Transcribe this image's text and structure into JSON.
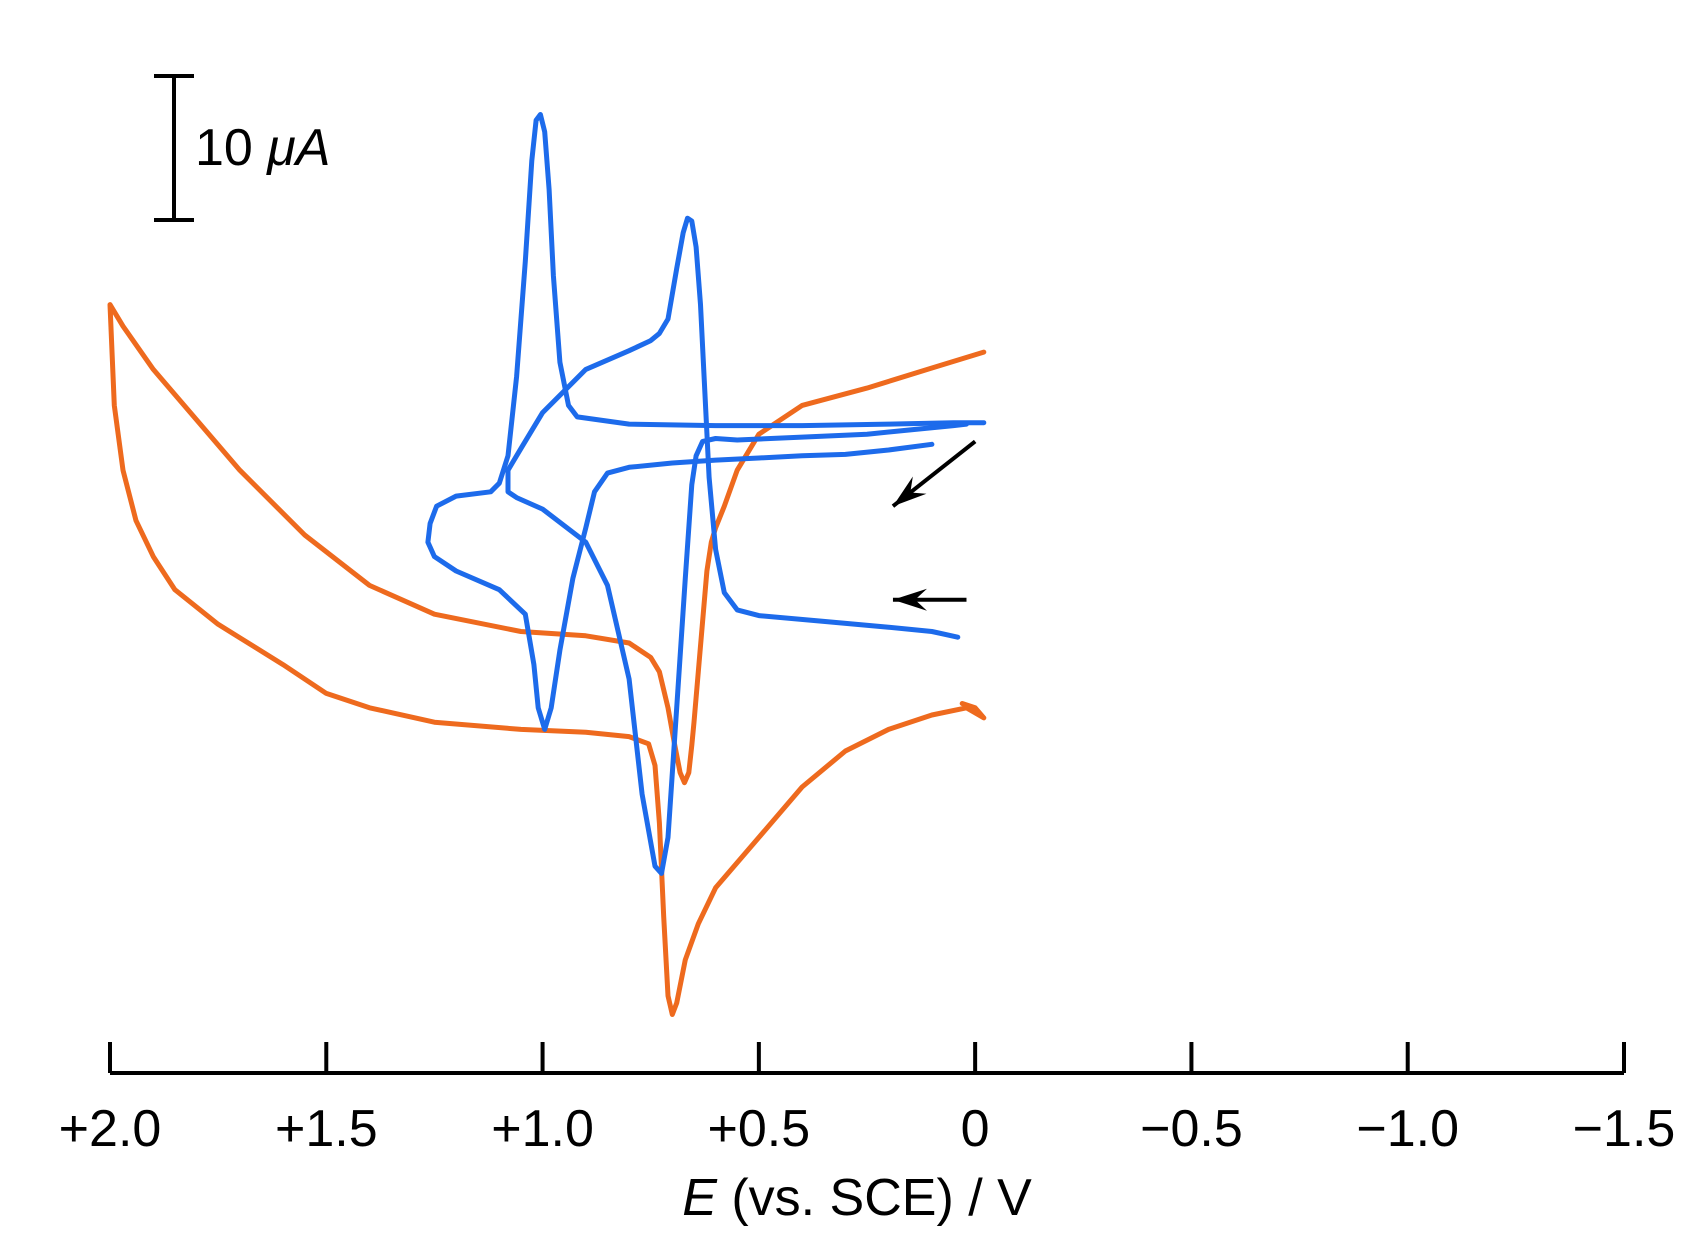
{
  "chart_data": {
    "type": "line",
    "title": "",
    "xlabel_italic": "E",
    "xlabel_rest": " (vs. SCE) / V",
    "ylabel": "",
    "xlim": [
      2.0,
      -1.5
    ],
    "x_ticks": [
      2.0,
      1.5,
      1.0,
      0.5,
      0.0,
      -0.5,
      -1.0,
      -1.5
    ],
    "x_tick_labels": [
      "+2.0",
      "+1.5",
      "+1.0",
      "+0.5",
      "0",
      "−0.5",
      "−1.0",
      "−1.5"
    ],
    "ylim_uA": [
      -50,
      35
    ],
    "scale_bar": {
      "value_uA": 10,
      "label_num": "10 ",
      "label_unit": "μA"
    },
    "grid": false,
    "legend": "none",
    "series": [
      {
        "name": "orange",
        "color": "#EE6A1E",
        "points": [
          [
            -0.02,
            12.7
          ],
          [
            0.1,
            11.6
          ],
          [
            0.25,
            10.2
          ],
          [
            0.4,
            9.0
          ],
          [
            0.5,
            7.0
          ],
          [
            0.55,
            4.5
          ],
          [
            0.58,
            2.0
          ],
          [
            0.6,
            0.5
          ],
          [
            0.61,
            -0.5
          ],
          [
            0.62,
            -2.5
          ],
          [
            0.63,
            -6.0
          ],
          [
            0.64,
            -9.5
          ],
          [
            0.65,
            -13.0
          ],
          [
            0.655,
            -14.6
          ],
          [
            0.662,
            -16.5
          ],
          [
            0.672,
            -17.2
          ],
          [
            0.682,
            -16.5
          ],
          [
            0.695,
            -14.5
          ],
          [
            0.71,
            -12.0
          ],
          [
            0.73,
            -9.5
          ],
          [
            0.75,
            -8.5
          ],
          [
            0.8,
            -7.5
          ],
          [
            0.9,
            -7.0
          ],
          [
            1.05,
            -6.7
          ],
          [
            1.25,
            -5.5
          ],
          [
            1.4,
            -3.5
          ],
          [
            1.55,
            0.0
          ],
          [
            1.7,
            4.5
          ],
          [
            1.8,
            8.0
          ],
          [
            1.9,
            11.5
          ],
          [
            1.97,
            14.5
          ],
          [
            2.0,
            16.0
          ],
          [
            1.99,
            9.0
          ],
          [
            1.97,
            4.5
          ],
          [
            1.94,
            1.0
          ],
          [
            1.9,
            -1.5
          ],
          [
            1.85,
            -3.8
          ],
          [
            1.75,
            -6.2
          ],
          [
            1.6,
            -9.0
          ],
          [
            1.5,
            -11.0
          ],
          [
            1.4,
            -12.0
          ],
          [
            1.25,
            -13.0
          ],
          [
            1.05,
            -13.5
          ],
          [
            0.9,
            -13.7
          ],
          [
            0.8,
            -14.0
          ],
          [
            0.755,
            -14.5
          ],
          [
            0.74,
            -16.0
          ],
          [
            0.73,
            -20.0
          ],
          [
            0.72,
            -26.5
          ],
          [
            0.71,
            -32.0
          ],
          [
            0.7,
            -33.3
          ],
          [
            0.69,
            -32.5
          ],
          [
            0.67,
            -29.5
          ],
          [
            0.64,
            -27.0
          ],
          [
            0.6,
            -24.5
          ],
          [
            0.5,
            -21.0
          ],
          [
            0.4,
            -17.5
          ],
          [
            0.3,
            -15.0
          ],
          [
            0.2,
            -13.5
          ],
          [
            0.1,
            -12.5
          ],
          [
            0.02,
            -12.0
          ],
          [
            -0.02,
            -12.7
          ],
          [
            0.0,
            -12.0
          ],
          [
            0.03,
            -11.7
          ]
        ]
      },
      {
        "name": "blue",
        "color": "#1D6BEB",
        "points": [
          [
            0.04,
            -7.1
          ],
          [
            0.1,
            -6.7
          ],
          [
            0.2,
            -6.4
          ],
          [
            0.35,
            -6.0
          ],
          [
            0.5,
            -5.6
          ],
          [
            0.55,
            -5.2
          ],
          [
            0.58,
            -4.0
          ],
          [
            0.6,
            -1.0
          ],
          [
            0.615,
            4.0
          ],
          [
            0.625,
            10.0
          ],
          [
            0.635,
            16.0
          ],
          [
            0.645,
            20.0
          ],
          [
            0.655,
            21.8
          ],
          [
            0.665,
            22.0
          ],
          [
            0.675,
            21.0
          ],
          [
            0.69,
            18.5
          ],
          [
            0.71,
            15.0
          ],
          [
            0.73,
            14.0
          ],
          [
            0.75,
            13.5
          ],
          [
            0.8,
            12.8
          ],
          [
            0.9,
            11.5
          ],
          [
            1.0,
            8.5
          ],
          [
            1.05,
            6.0
          ],
          [
            1.07,
            5.0
          ],
          [
            1.08,
            4.5
          ],
          [
            1.08,
            3.0
          ],
          [
            1.06,
            2.6
          ],
          [
            1.0,
            1.8
          ],
          [
            0.9,
            -0.5
          ],
          [
            0.85,
            -3.5
          ],
          [
            0.8,
            -10.0
          ],
          [
            0.77,
            -18.0
          ],
          [
            0.74,
            -23.0
          ],
          [
            0.725,
            -23.5
          ],
          [
            0.71,
            -21.0
          ],
          [
            0.69,
            -12.0
          ],
          [
            0.67,
            -3.0
          ],
          [
            0.655,
            3.5
          ],
          [
            0.645,
            5.5
          ],
          [
            0.63,
            6.5
          ],
          [
            0.6,
            6.7
          ],
          [
            0.55,
            6.6
          ],
          [
            0.4,
            6.8
          ],
          [
            0.25,
            7.0
          ],
          [
            0.15,
            7.3
          ],
          [
            0.05,
            7.6
          ],
          [
            0.02,
            7.7
          ]
        ]
      },
      {
        "name": "blue-negative",
        "color": "#1D6BEB",
        "points": [
          [
            0.1,
            6.3
          ],
          [
            0.2,
            5.9
          ],
          [
            0.3,
            5.6
          ],
          [
            0.4,
            5.5
          ],
          [
            0.5,
            5.35
          ],
          [
            0.6,
            5.2
          ],
          [
            0.7,
            5.0
          ],
          [
            0.8,
            4.7
          ],
          [
            0.85,
            4.3
          ],
          [
            0.88,
            3.0
          ],
          [
            0.9,
            0.5
          ],
          [
            0.93,
            -3.0
          ],
          [
            0.96,
            -8.0
          ],
          [
            0.98,
            -12.0
          ],
          [
            0.995,
            -13.5
          ],
          [
            1.01,
            -12.0
          ],
          [
            1.02,
            -9.0
          ],
          [
            1.04,
            -5.5
          ],
          [
            1.1,
            -3.8
          ],
          [
            1.2,
            -2.5
          ],
          [
            1.25,
            -1.5
          ],
          [
            1.265,
            -0.5
          ],
          [
            1.26,
            0.8
          ],
          [
            1.245,
            2.0
          ],
          [
            1.2,
            2.7
          ],
          [
            1.12,
            3.0
          ],
          [
            1.1,
            3.6
          ],
          [
            1.08,
            5.5
          ],
          [
            1.06,
            11.0
          ],
          [
            1.04,
            19.0
          ],
          [
            1.025,
            26.0
          ],
          [
            1.015,
            28.8
          ],
          [
            1.005,
            29.2
          ],
          [
            0.995,
            28.0
          ],
          [
            0.985,
            24.0
          ],
          [
            0.975,
            18.0
          ],
          [
            0.96,
            12.0
          ],
          [
            0.94,
            9.0
          ],
          [
            0.92,
            8.2
          ],
          [
            0.8,
            7.7
          ],
          [
            0.6,
            7.6
          ],
          [
            0.4,
            7.6
          ],
          [
            0.2,
            7.7
          ],
          [
            0.05,
            7.8
          ],
          [
            -0.02,
            7.8
          ]
        ]
      }
    ],
    "annotations": [
      {
        "type": "arrow",
        "x_from": 0.02,
        "y_from_uA": -4.5,
        "x_to": 0.19,
        "y_to_uA": -4.5
      },
      {
        "type": "arrow",
        "x_from": 0.0,
        "y_from_uA": 6.5,
        "x_to": 0.19,
        "y_to_uA": 2.0
      }
    ]
  }
}
